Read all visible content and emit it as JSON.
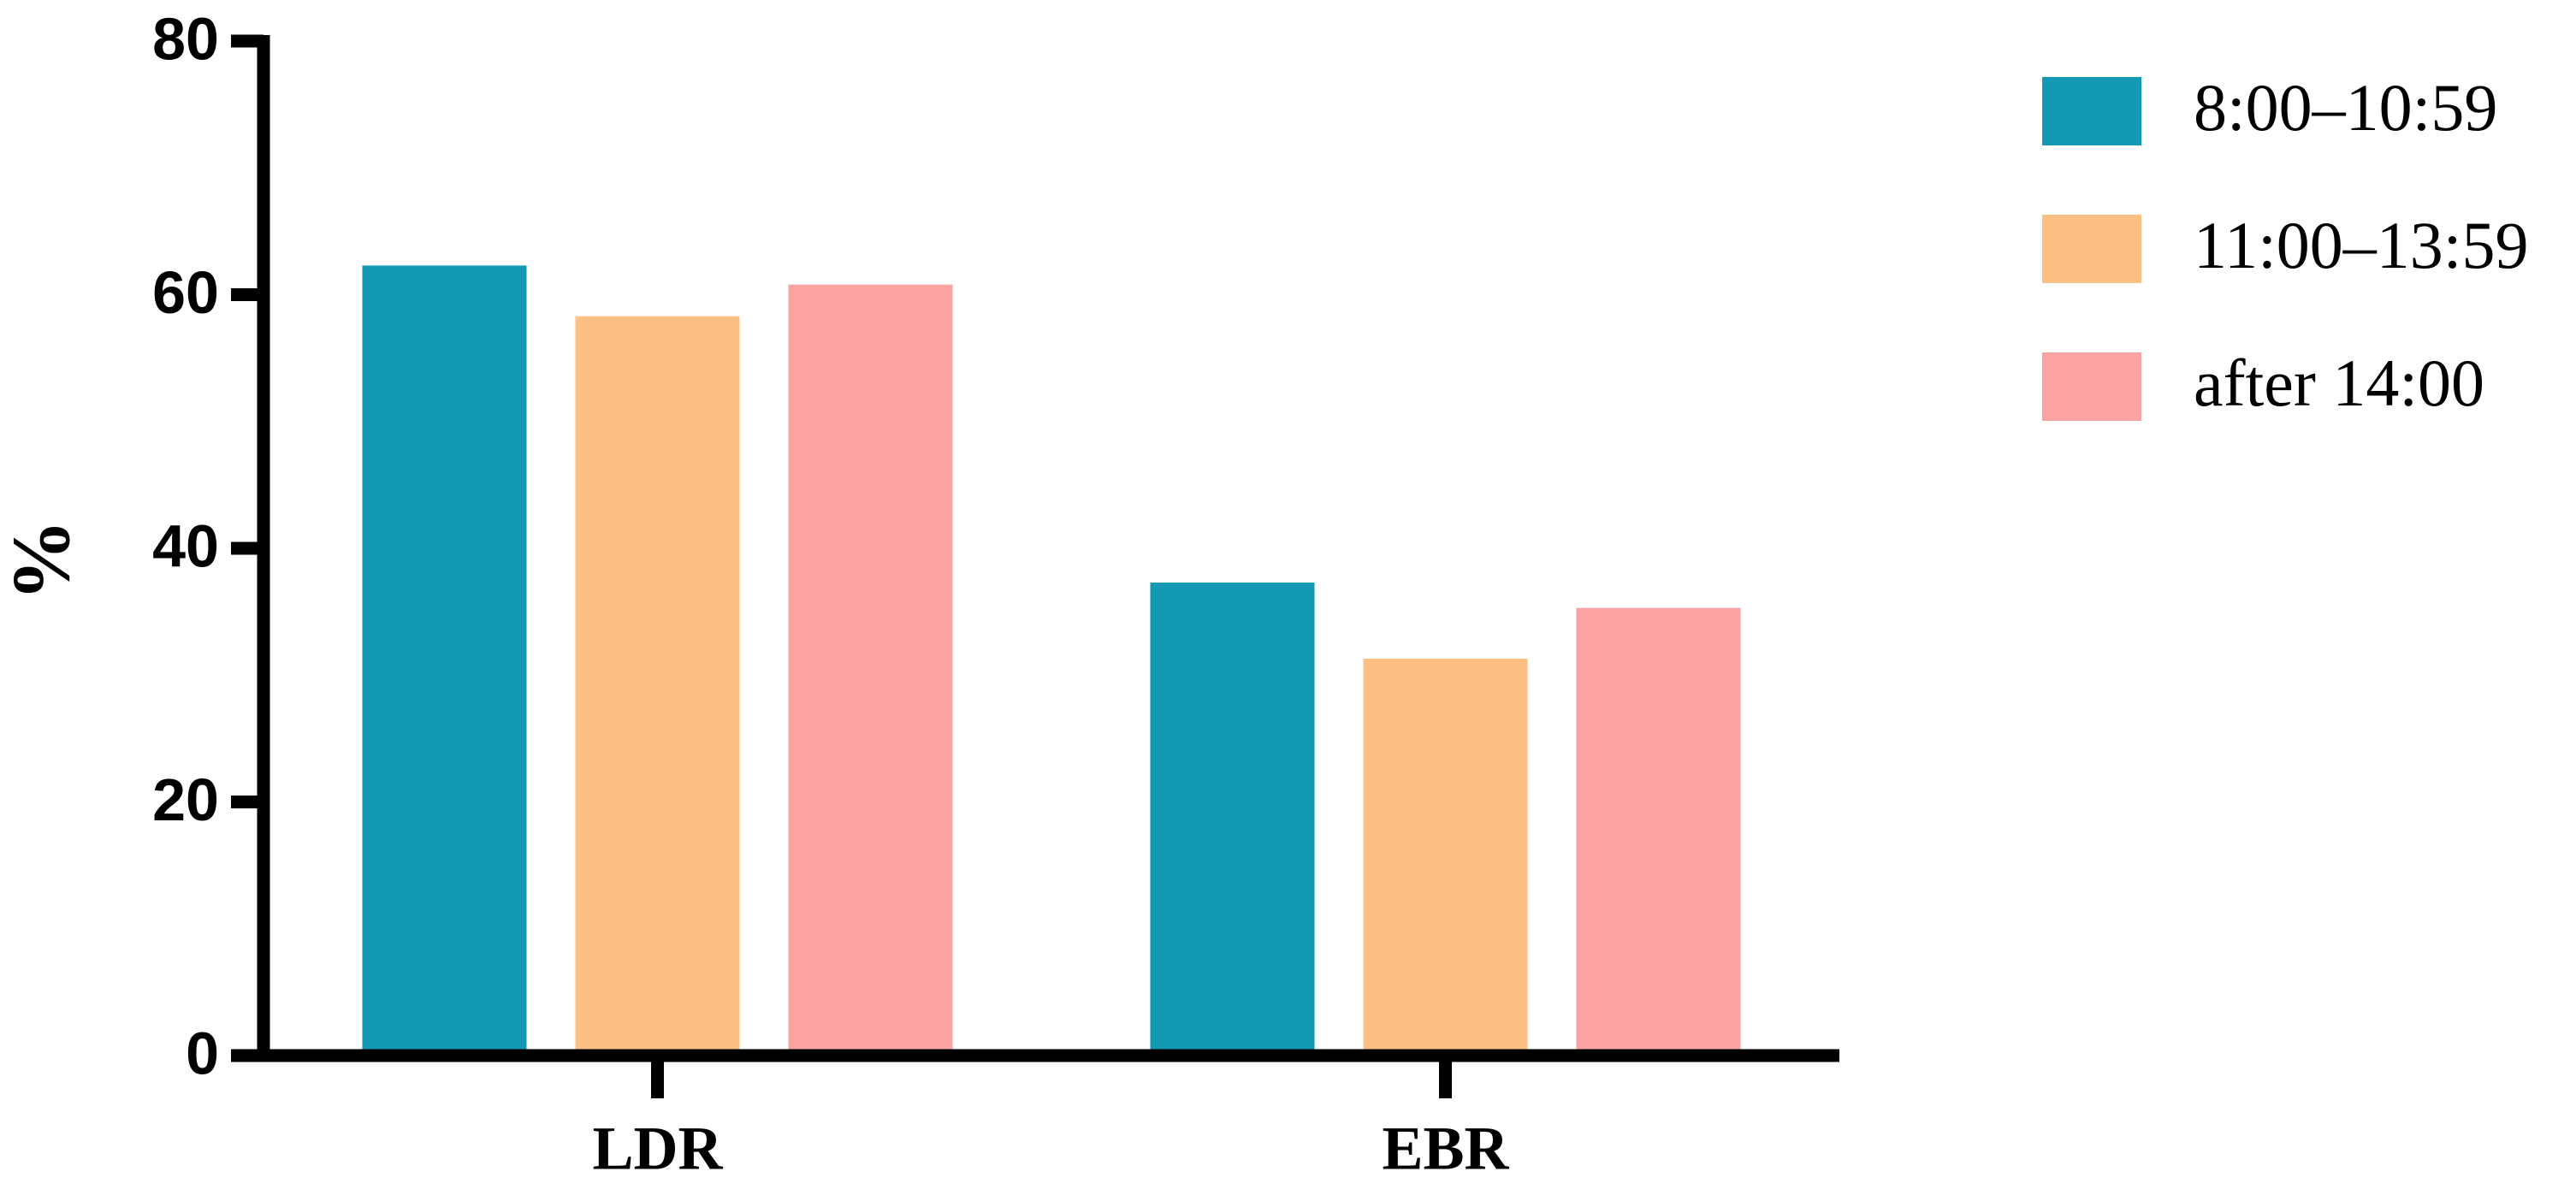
{
  "chart_data": {
    "type": "bar",
    "y_label": "%",
    "categories": [
      "LDR",
      "EBR"
    ],
    "series": [
      {
        "name": "8:00–10:59",
        "color": "#1399b4",
        "values": [
          62.3,
          37.3
        ]
      },
      {
        "name": "11:00–13:59",
        "color": "#fdc083",
        "values": [
          58.3,
          31.3
        ]
      },
      {
        "name": "after 14:00",
        "color": "#fba2a2",
        "values": [
          60.8,
          35.3
        ]
      }
    ],
    "ylim": [
      0,
      80
    ],
    "yticks": [
      0,
      20,
      40,
      60,
      80
    ],
    "grid": false,
    "legend": "right"
  }
}
